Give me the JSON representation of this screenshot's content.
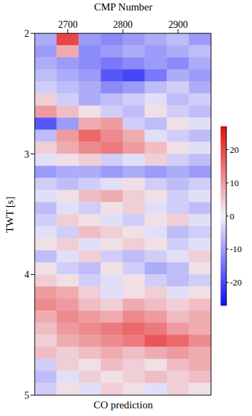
{
  "chart_data": {
    "type": "heatmap",
    "title": "CO prediction",
    "x_label": "CMP Number",
    "y_label": "TWT [s]",
    "xlim": [
      2640,
      2960
    ],
    "xticks": [
      2700,
      2800,
      2900
    ],
    "ylim": [
      2,
      5
    ],
    "yticks": [
      2,
      3,
      4,
      5
    ],
    "x_edges": [
      2640,
      2680,
      2720,
      2760,
      2800,
      2840,
      2880,
      2920,
      2960
    ],
    "y_edges": [
      2.0,
      2.1,
      2.2,
      2.3,
      2.4,
      2.5,
      2.6,
      2.7,
      2.8,
      2.9,
      3.0,
      3.1,
      3.2,
      3.3,
      3.4,
      3.5,
      3.6,
      3.7,
      3.8,
      3.9,
      4.0,
      4.1,
      4.2,
      4.3,
      4.4,
      4.5,
      4.6,
      4.7,
      4.8,
      4.9,
      5.0
    ],
    "cells": [
      [
        -8,
        20,
        -10,
        -12,
        -10,
        -8,
        -6,
        -10
      ],
      [
        -10,
        8,
        -12,
        -10,
        -8,
        -10,
        -8,
        -6
      ],
      [
        -8,
        -10,
        -12,
        -14,
        -12,
        -10,
        -12,
        -8
      ],
      [
        -6,
        -8,
        -10,
        -18,
        -20,
        -14,
        -8,
        -10
      ],
      [
        -4,
        -6,
        -8,
        -12,
        -10,
        -6,
        -4,
        -8
      ],
      [
        4,
        -4,
        -8,
        -6,
        -4,
        -2,
        -6,
        -4
      ],
      [
        10,
        6,
        2,
        -4,
        -6,
        2,
        -4,
        -6
      ],
      [
        -18,
        -10,
        8,
        10,
        -4,
        -6,
        2,
        -2
      ],
      [
        -6,
        10,
        16,
        12,
        8,
        -2,
        -4,
        -6
      ],
      [
        4,
        8,
        12,
        14,
        10,
        6,
        2,
        -2
      ],
      [
        -2,
        2,
        4,
        -4,
        -2,
        4,
        -4,
        -6
      ],
      [
        -10,
        -8,
        -8,
        -10,
        -8,
        -10,
        -8,
        -10
      ],
      [
        -4,
        -6,
        -4,
        -2,
        2,
        -4,
        -6,
        -4
      ],
      [
        -2,
        2,
        6,
        8,
        4,
        2,
        -4,
        -2
      ],
      [
        -6,
        -2,
        -4,
        2,
        4,
        -2,
        -4,
        -6
      ],
      [
        -4,
        4,
        2,
        -2,
        -4,
        2,
        4,
        -2
      ],
      [
        -2,
        -4,
        6,
        4,
        2,
        -2,
        -6,
        -4
      ],
      [
        2,
        4,
        -2,
        2,
        4,
        2,
        -4,
        -2
      ],
      [
        -6,
        -2,
        4,
        -4,
        -6,
        -4,
        -2,
        4
      ],
      [
        2,
        -4,
        -6,
        2,
        -4,
        -8,
        -6,
        2
      ],
      [
        4,
        2,
        -4,
        -2,
        2,
        -4,
        -6,
        -4
      ],
      [
        10,
        8,
        4,
        -2,
        2,
        4,
        -2,
        2
      ],
      [
        12,
        10,
        6,
        4,
        8,
        6,
        4,
        6
      ],
      [
        8,
        12,
        10,
        8,
        12,
        10,
        6,
        8
      ],
      [
        6,
        10,
        12,
        14,
        16,
        14,
        10,
        8
      ],
      [
        4,
        8,
        10,
        12,
        14,
        18,
        16,
        12
      ],
      [
        6,
        4,
        6,
        8,
        6,
        8,
        10,
        8
      ],
      [
        -4,
        4,
        2,
        6,
        4,
        2,
        6,
        8
      ],
      [
        -6,
        -2,
        4,
        2,
        4,
        6,
        4,
        6
      ],
      [
        -4,
        2,
        -2,
        4,
        2,
        -2,
        4,
        2
      ]
    ],
    "colorbar_range": [
      -27,
      27
    ],
    "colorbar_ticks": [
      -20,
      -10,
      0,
      10,
      20
    ]
  }
}
